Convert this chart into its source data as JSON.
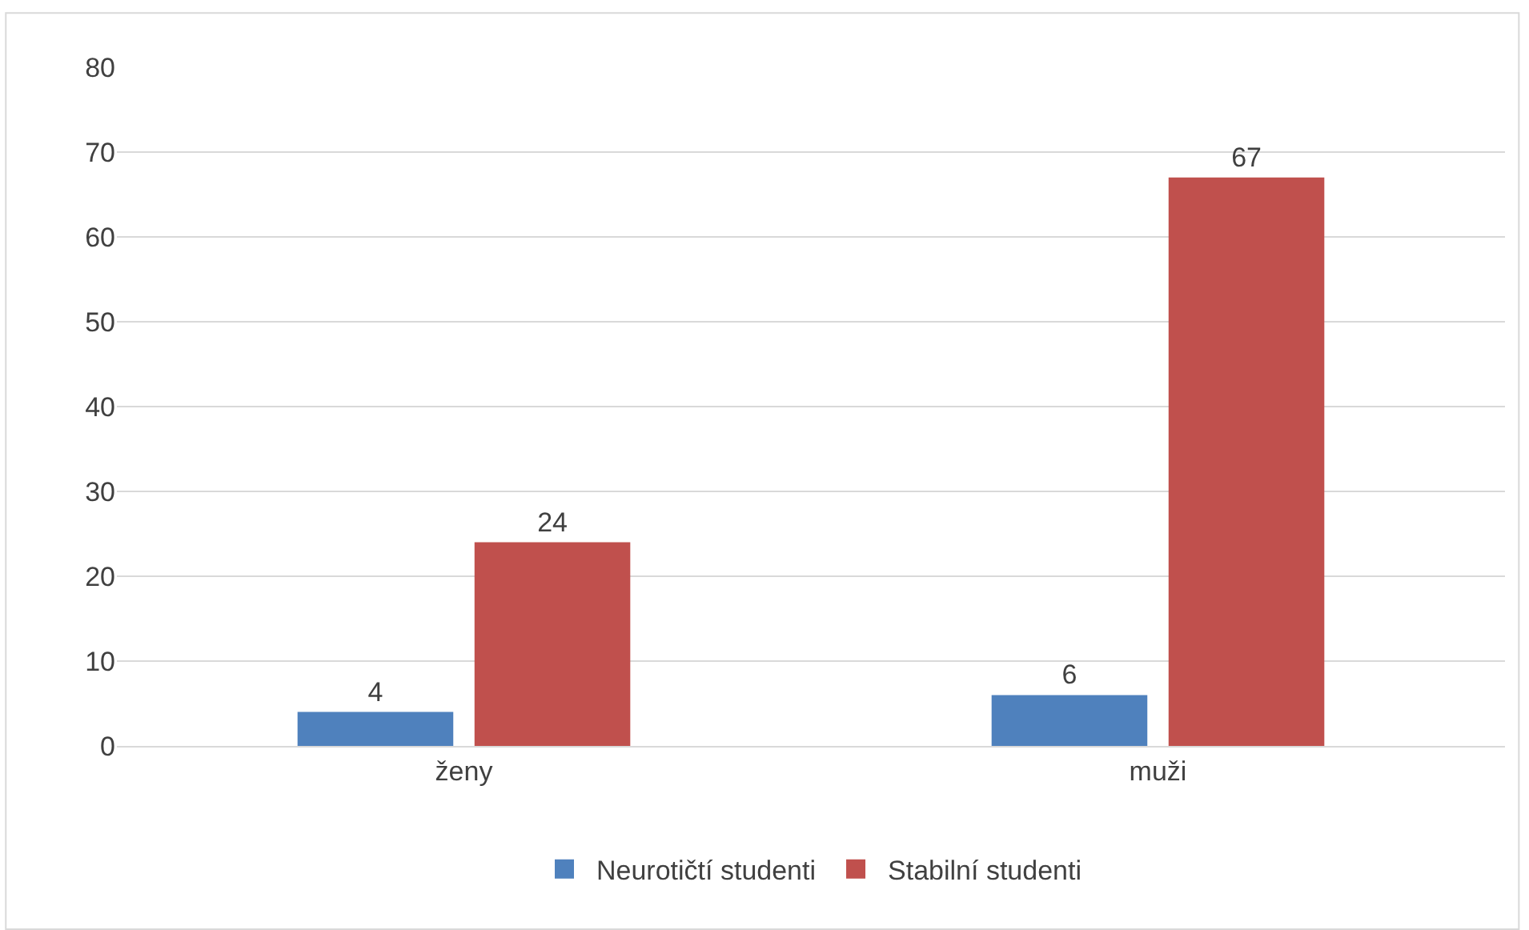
{
  "chart_data": {
    "type": "bar",
    "categories": [
      "ženy",
      "muži"
    ],
    "series": [
      {
        "name": "Neurotičtí studenti",
        "color": "#4f81bd",
        "values": [
          4,
          6
        ]
      },
      {
        "name": "Stabilní studenti",
        "color": "#c0504d",
        "values": [
          24,
          67
        ]
      }
    ],
    "ylim": [
      0,
      80
    ],
    "yticks": [
      0,
      10,
      20,
      30,
      40,
      50,
      60,
      70,
      80
    ],
    "grid": "y",
    "legend": "bottom",
    "data_labels": true
  }
}
